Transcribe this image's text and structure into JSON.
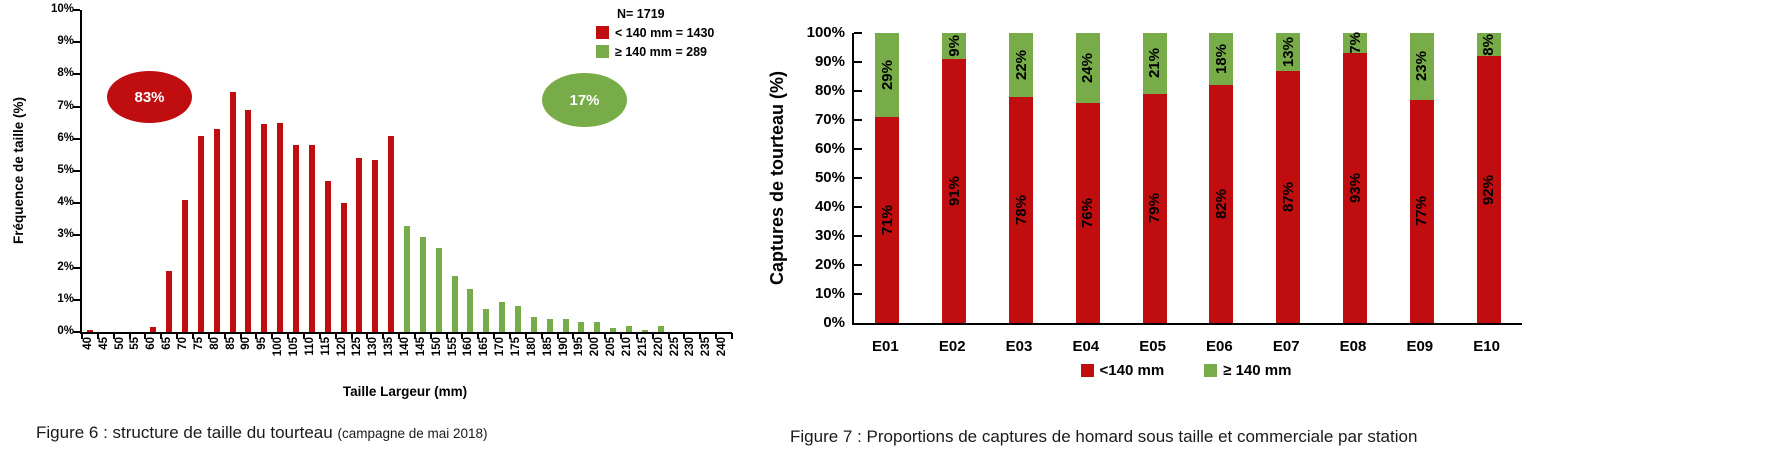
{
  "colors": {
    "red": "#C00D10",
    "green": "#77AC49"
  },
  "figure6": {
    "caption": "Figure 6 : structure de taille du tourteau ",
    "caption_note": "(campagne de mai 2018)",
    "annotation_red": "83%",
    "annotation_green": "17%"
  },
  "figure7": {
    "caption": "Figure 7 : Proportions de captures de homard sous taille et commerciale par station"
  },
  "chart_data": [
    {
      "type": "bar",
      "title": "Figure 6 : structure de taille du tourteau (campagne de mai 2018)",
      "xlabel": "Taille Largeur (mm)",
      "ylabel": "Fréquence de taille (%)",
      "ylim": [
        0,
        10
      ],
      "grid": false,
      "y_ticks": [
        "0%",
        "1%",
        "2%",
        "3%",
        "4%",
        "5%",
        "6%",
        "7%",
        "8%",
        "9%",
        "10%"
      ],
      "categories": [
        40,
        45,
        50,
        55,
        60,
        65,
        70,
        75,
        80,
        85,
        90,
        95,
        100,
        105,
        110,
        115,
        120,
        125,
        130,
        135,
        140,
        145,
        150,
        155,
        160,
        165,
        170,
        175,
        180,
        185,
        190,
        195,
        200,
        205,
        210,
        215,
        220,
        225,
        230,
        235,
        240
      ],
      "values": [
        0.06,
        0,
        0,
        0,
        0.17,
        1.9,
        4.1,
        6.1,
        6.3,
        7.45,
        6.9,
        6.45,
        6.5,
        5.8,
        5.8,
        4.7,
        4.0,
        5.4,
        5.35,
        6.1,
        3.3,
        2.95,
        2.6,
        1.75,
        1.35,
        0.7,
        0.93,
        0.8,
        0.47,
        0.4,
        0.4,
        0.3,
        0.3,
        0.12,
        0.2,
        0.05,
        0.2,
        0,
        0,
        0,
        0
      ],
      "split_value_mm": 140,
      "color_below": "#C00D10",
      "color_at_or_above": "#77AC49",
      "legend": {
        "position": "top-right",
        "n": "N= 1719",
        "below": "< 140 mm = 1430",
        "at_or_above": "≥ 140 mm  = 289"
      },
      "annotations": [
        {
          "text": "83%",
          "color": "#C00D10",
          "meaning": "share below 140 mm"
        },
        {
          "text": "17%",
          "color": "#77AC49",
          "meaning": "share at or above 140 mm"
        }
      ]
    },
    {
      "type": "bar",
      "stacked": true,
      "title": "Figure 7 : Proportions de captures de homard sous taille et commerciale par station",
      "xlabel": "",
      "ylabel": "Captures de tourteau (%)",
      "ylim": [
        0,
        100
      ],
      "grid": false,
      "legend_position": "bottom",
      "y_ticks": [
        "0%",
        "10%",
        "20%",
        "30%",
        "40%",
        "50%",
        "60%",
        "70%",
        "80%",
        "90%",
        "100%"
      ],
      "categories": [
        "E01",
        "E02",
        "E03",
        "E04",
        "E05",
        "E06",
        "E07",
        "E08",
        "E09",
        "E10"
      ],
      "series": [
        {
          "name": "<140 mm",
          "color": "#C00D10",
          "values": [
            71,
            91,
            78,
            76,
            79,
            82,
            87,
            93,
            77,
            92
          ],
          "labels": [
            "71%",
            "91%",
            "78%",
            "76%",
            "79%",
            "82%",
            "87%",
            "93%",
            "77%",
            "92%"
          ]
        },
        {
          "name": "≥ 140 mm",
          "color": "#77AC49",
          "values": [
            29,
            9,
            22,
            24,
            21,
            18,
            13,
            7,
            23,
            8
          ],
          "labels": [
            "29%",
            "9%",
            "22%",
            "24%",
            "21%",
            "18%",
            "13%",
            "7%",
            "23%",
            "8%"
          ]
        }
      ]
    }
  ]
}
